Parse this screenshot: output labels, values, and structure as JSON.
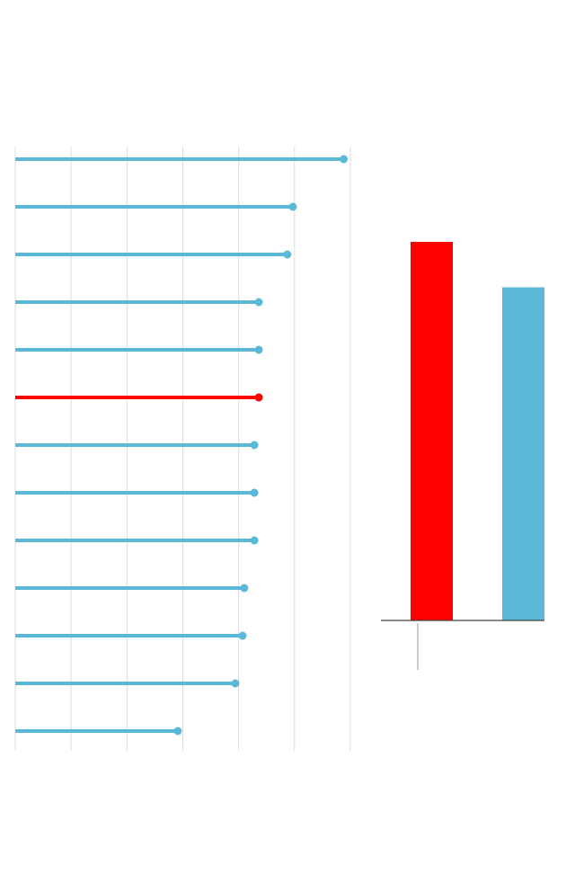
{
  "chart_data": [
    {
      "type": "lollipop",
      "orientation": "horizontal",
      "xlim": [
        0,
        6
      ],
      "grid": true,
      "values": [
        5.88,
        4.97,
        4.87,
        4.36,
        4.36,
        4.36,
        4.28,
        4.28,
        4.28,
        4.1,
        4.07,
        3.94,
        2.91
      ],
      "highlight_index": 5,
      "colors": {
        "default": "#5bb8d6",
        "highlight": "#ff0000",
        "grid": "#dddddd"
      }
    },
    {
      "type": "bar",
      "values": [
        1.0,
        0.88
      ],
      "ylim": [
        0,
        1.0
      ],
      "colors": [
        "#ff0000",
        "#5bb8d6"
      ],
      "axis_color": "#444444"
    }
  ]
}
